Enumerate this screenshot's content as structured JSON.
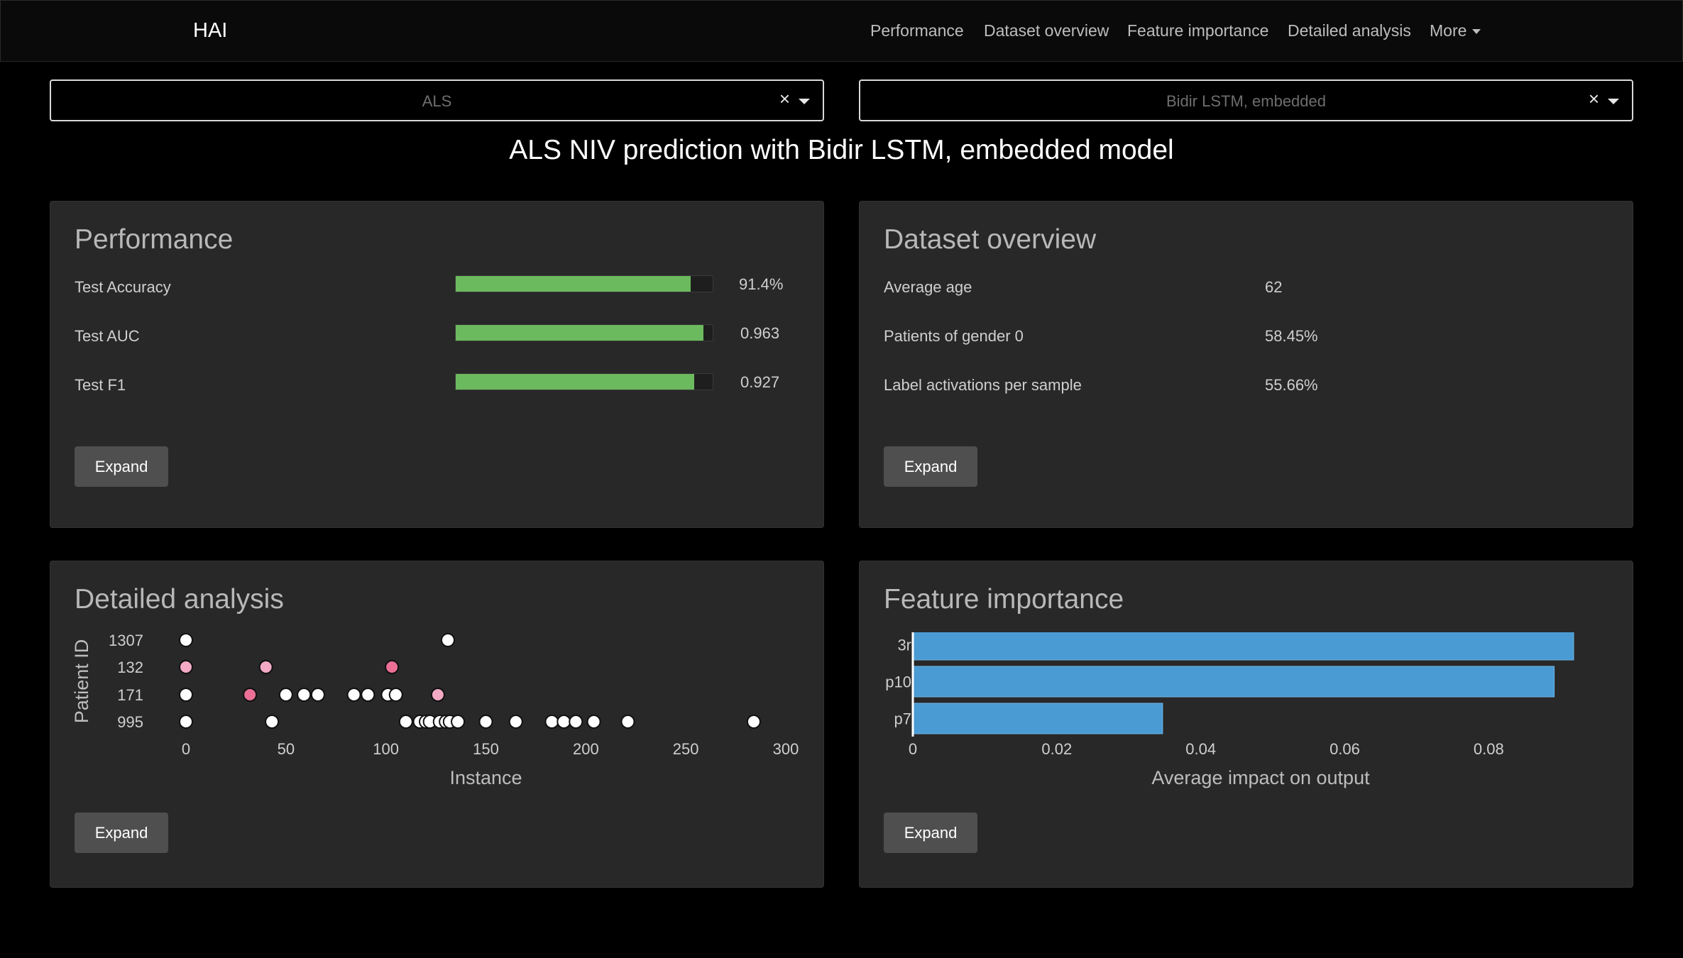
{
  "navbar": {
    "brand": "HAI",
    "links": [
      "Performance",
      "Dataset overview",
      "Feature importance",
      "Detailed analysis"
    ],
    "more": "More"
  },
  "selects": {
    "dataset": {
      "value": "ALS",
      "clear": "×"
    },
    "model": {
      "value": "Bidir LSTM, embedded",
      "clear": "×"
    }
  },
  "page_title": "ALS NIV prediction with Bidir LSTM, embedded model",
  "performance": {
    "title": "Performance",
    "metrics": [
      {
        "label": "Test Accuracy",
        "value": "91.4%",
        "fraction": 0.914
      },
      {
        "label": "Test AUC",
        "value": "0.963",
        "fraction": 0.963
      },
      {
        "label": "Test F1",
        "value": "0.927",
        "fraction": 0.927
      }
    ],
    "expand": "Expand"
  },
  "dataset_overview": {
    "title": "Dataset overview",
    "rows": [
      {
        "label": "Average age",
        "value": "62"
      },
      {
        "label": "Patients of gender 0",
        "value": "58.45%"
      },
      {
        "label": "Label activations per sample",
        "value": "55.66%"
      }
    ],
    "expand": "Expand"
  },
  "detailed_analysis": {
    "title": "Detailed analysis",
    "expand": "Expand"
  },
  "feature_importance": {
    "title": "Feature importance",
    "expand": "Expand"
  },
  "colors": {
    "bar_green": "#6cba5e",
    "bar_blue": "#4a9bd4",
    "dot_white": "#ffffff",
    "dot_light_pink": "#f4a9c5",
    "dot_pink": "#ec6f96"
  },
  "chart_data": [
    {
      "type": "scatter",
      "title": "",
      "xlabel": "Instance",
      "ylabel": "Patient ID",
      "xlim": [
        0,
        300
      ],
      "x_ticks": [
        "0",
        "50",
        "100",
        "150",
        "200",
        "250",
        "300"
      ],
      "categories": [
        "1307",
        "132",
        "171",
        "995"
      ],
      "series": [
        {
          "category": "1307",
          "points": [
            {
              "x": 0,
              "color": "#ffffff"
            },
            {
              "x": 131,
              "color": "#ffffff"
            }
          ]
        },
        {
          "category": "132",
          "points": [
            {
              "x": 0,
              "color": "#f4a9c5"
            },
            {
              "x": 40,
              "color": "#f4a9c5"
            },
            {
              "x": 103,
              "color": "#ec6f96"
            }
          ]
        },
        {
          "category": "171",
          "points": [
            {
              "x": 0,
              "color": "#ffffff"
            },
            {
              "x": 32,
              "color": "#ec6f96"
            },
            {
              "x": 50,
              "color": "#ffffff"
            },
            {
              "x": 59,
              "color": "#ffffff"
            },
            {
              "x": 66,
              "color": "#ffffff"
            },
            {
              "x": 84,
              "color": "#ffffff"
            },
            {
              "x": 91,
              "color": "#ffffff"
            },
            {
              "x": 101,
              "color": "#ffffff"
            },
            {
              "x": 105,
              "color": "#ffffff"
            },
            {
              "x": 126,
              "color": "#f4a9c5"
            }
          ]
        },
        {
          "category": "995",
          "points": [
            {
              "x": 0,
              "color": "#ffffff"
            },
            {
              "x": 43,
              "color": "#ffffff"
            },
            {
              "x": 110,
              "color": "#ffffff"
            },
            {
              "x": 117,
              "color": "#ffffff"
            },
            {
              "x": 120,
              "color": "#ffffff"
            },
            {
              "x": 122,
              "color": "#ffffff"
            },
            {
              "x": 127,
              "color": "#ffffff"
            },
            {
              "x": 130,
              "color": "#ffffff"
            },
            {
              "x": 132,
              "color": "#ffffff"
            },
            {
              "x": 136,
              "color": "#ffffff"
            },
            {
              "x": 150,
              "color": "#ffffff"
            },
            {
              "x": 165,
              "color": "#ffffff"
            },
            {
              "x": 183,
              "color": "#ffffff"
            },
            {
              "x": 189,
              "color": "#ffffff"
            },
            {
              "x": 195,
              "color": "#ffffff"
            },
            {
              "x": 204,
              "color": "#ffffff"
            },
            {
              "x": 221,
              "color": "#ffffff"
            },
            {
              "x": 284,
              "color": "#ffffff"
            }
          ]
        }
      ]
    },
    {
      "type": "bar",
      "orientation": "horizontal",
      "title": "",
      "xlabel": "Average impact on output",
      "ylabel": "",
      "xlim": [
        0,
        0.092
      ],
      "x_ticks": [
        "0",
        "0.02",
        "0.04",
        "0.06",
        "0.08"
      ],
      "x_tick_values": [
        0,
        0.02,
        0.04,
        0.06,
        0.08
      ],
      "categories": [
        "3r",
        "p10",
        "p7"
      ],
      "values": [
        0.0918,
        0.0891,
        0.0347
      ]
    }
  ]
}
